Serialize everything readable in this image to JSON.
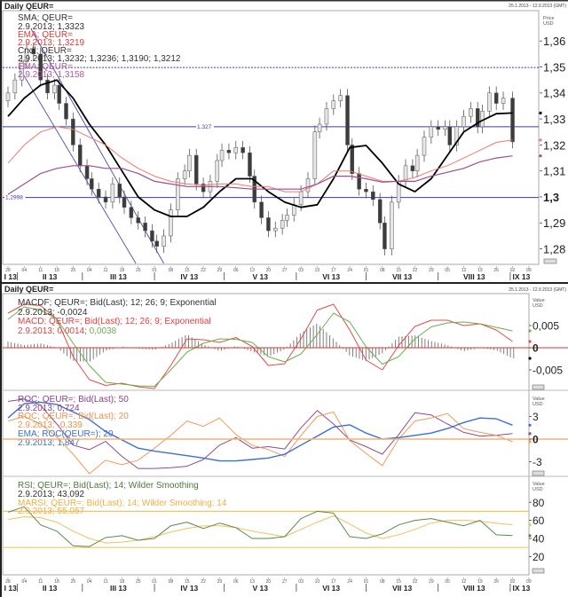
{
  "header": {
    "title_top": "Daily QEUR=",
    "title_bottom": "Daily QEUR=",
    "date_range_top": "25.1.2013 - 12.9.2013 (GMT)",
    "date_range_bottom": "25.1.2013 - 12.9.2013 (GMT)"
  },
  "legend": {
    "price": [
      {
        "name": "SMA; QEUR=",
        "value": "2.9.2013; 1,3323"
      },
      {
        "name": "EMA; QEUR=",
        "value": "2.9.2013; 1,3219"
      },
      {
        "name": "Cndl; QEUR=",
        "value": "2.9.2013; 1,3232; 1,3236; 1,3190; 1,3212"
      },
      {
        "name": "EMA; QEUR=",
        "value": "2.9.2013; 1,3158"
      }
    ],
    "macd": {
      "macdf_name": "MACDF; QEUR=; Bid(Last);  12; 26; 9; Exponential",
      "macdf_value": "2.9.2013; -0,0024",
      "macd_name": "MACD; QEUR=; Bid(Last);  12; 26; 9; Exponential",
      "macd_value": "2.9.2013; 0,0014; ",
      "signal_value": "0,0038"
    },
    "roc": {
      "roc50_name": "ROC; QEUR=; Bid(Last);  50",
      "roc50_value": "2.9.2013; 0,724",
      "roc20_name": "ROC; QEUR=; Bid(Last);  20",
      "roc20_value": "2.9.2013; -0,339",
      "ema_name": "EMA; ROC(QEUR=);  20",
      "ema_value": "2.9.2013; 1,847"
    },
    "rsi": {
      "rsi_name": "RSI; QEUR=; Bid(Last);  14; Wilder Smoothing",
      "rsi_value": "2.9.2013; 43,092",
      "marsi_name": "MARSI; QEUR=; Bid(Last);  14; Wilder Smoothing; 14",
      "marsi_value": "2.9.2013; 55,057"
    }
  },
  "axes": {
    "price_unit": [
      "Price",
      "USD"
    ],
    "value_unit": [
      "Value",
      "USD"
    ],
    "week_ticks": [
      {
        "date": "2013-01-28",
        "label": "28"
      },
      {
        "date": "2013-02-04",
        "label": "04"
      },
      {
        "date": "2013-02-11",
        "label": "11"
      },
      {
        "date": "2013-02-18",
        "label": "18"
      },
      {
        "date": "2013-02-25",
        "label": "25"
      },
      {
        "date": "2013-03-04",
        "label": "04"
      },
      {
        "date": "2013-03-11",
        "label": "11"
      },
      {
        "date": "2013-03-18",
        "label": "18"
      },
      {
        "date": "2013-03-25",
        "label": "25"
      },
      {
        "date": "2013-04-01",
        "label": "01"
      },
      {
        "date": "2013-04-08",
        "label": "08"
      },
      {
        "date": "2013-04-15",
        "label": "15"
      },
      {
        "date": "2013-04-22",
        "label": "22"
      },
      {
        "date": "2013-04-29",
        "label": "29"
      },
      {
        "date": "2013-05-06",
        "label": "06"
      },
      {
        "date": "2013-05-13",
        "label": "13"
      },
      {
        "date": "2013-05-20",
        "label": "20"
      },
      {
        "date": "2013-05-27",
        "label": "27"
      },
      {
        "date": "2013-06-03",
        "label": "03"
      },
      {
        "date": "2013-06-10",
        "label": "10"
      },
      {
        "date": "2013-06-17",
        "label": "17"
      },
      {
        "date": "2013-06-24",
        "label": "24"
      },
      {
        "date": "2013-07-01",
        "label": "01"
      },
      {
        "date": "2013-07-08",
        "label": "08"
      },
      {
        "date": "2013-07-15",
        "label": "15"
      },
      {
        "date": "2013-07-22",
        "label": "22"
      },
      {
        "date": "2013-07-29",
        "label": "29"
      },
      {
        "date": "2013-08-05",
        "label": "05"
      },
      {
        "date": "2013-08-12",
        "label": "12"
      },
      {
        "date": "2013-08-19",
        "label": "19"
      },
      {
        "date": "2013-08-26",
        "label": "26"
      },
      {
        "date": "2013-09-02",
        "label": "02"
      },
      {
        "date": "2013-09-09",
        "label": "09"
      }
    ],
    "months": [
      {
        "label": "I 13",
        "start": "2013-01-25",
        "end": "2013-02-01"
      },
      {
        "label": "II 13",
        "start": "2013-02-01",
        "end": "2013-03-01"
      },
      {
        "label": "III 13",
        "start": "2013-03-01",
        "end": "2013-04-01"
      },
      {
        "label": "IV 13",
        "start": "2013-04-01",
        "end": "2013-05-01"
      },
      {
        "label": "V 13",
        "start": "2013-05-01",
        "end": "2013-06-01"
      },
      {
        "label": "VI 13",
        "start": "2013-06-01",
        "end": "2013-07-01"
      },
      {
        "label": "VII 13",
        "start": "2013-07-01",
        "end": "2013-08-01"
      },
      {
        "label": "VIII 13",
        "start": "2013-08-01",
        "end": "2013-09-01"
      },
      {
        "label": "IX 13",
        "start": "2013-09-01",
        "end": "2013-09-12"
      }
    ]
  },
  "chart_data": [
    {
      "type": "candlestick",
      "panel": "price",
      "ylim": [
        1.275,
        1.372
      ],
      "yticks": [
        {
          "value": 1.36,
          "label": "1,36"
        },
        {
          "value": 1.35,
          "label": "1,35"
        },
        {
          "value": 1.34,
          "label": "1,34"
        },
        {
          "value": 1.33,
          "label": "1,33"
        },
        {
          "value": 1.32,
          "label": "1,32"
        },
        {
          "value": 1.31,
          "label": "1,31"
        },
        {
          "value": 1.3,
          "label": "1,3",
          "bold": true
        },
        {
          "value": 1.29,
          "label": "1,29"
        },
        {
          "value": 1.28,
          "label": "1,28"
        }
      ],
      "candles": {
        "dates": [
          "2013-01-28",
          "2013-01-31",
          "2013-02-03",
          "2013-02-05",
          "2013-02-08",
          "2013-02-11",
          "2013-02-14",
          "2013-02-17",
          "2013-02-19",
          "2013-02-22",
          "2013-02-25",
          "2013-02-28",
          "2013-03-03",
          "2013-03-05",
          "2013-03-08",
          "2013-03-11",
          "2013-03-14",
          "2013-03-17",
          "2013-03-19",
          "2013-03-22",
          "2013-03-25",
          "2013-03-28",
          "2013-03-31",
          "2013-04-02",
          "2013-04-05",
          "2013-04-08",
          "2013-04-11",
          "2013-04-14",
          "2013-04-16",
          "2013-04-19",
          "2013-04-22",
          "2013-04-25",
          "2013-04-28",
          "2013-04-30",
          "2013-05-03",
          "2013-05-06",
          "2013-05-09",
          "2013-05-12",
          "2013-05-14",
          "2013-05-17",
          "2013-05-20",
          "2013-05-23",
          "2013-05-26",
          "2013-05-28",
          "2013-05-31",
          "2013-06-03",
          "2013-06-06",
          "2013-06-09",
          "2013-06-11",
          "2013-06-14",
          "2013-06-17",
          "2013-06-20",
          "2013-06-23",
          "2013-06-25",
          "2013-06-28",
          "2013-07-01",
          "2013-07-04",
          "2013-07-07",
          "2013-07-09",
          "2013-07-12",
          "2013-07-15",
          "2013-07-18",
          "2013-07-21",
          "2013-07-23",
          "2013-07-26",
          "2013-07-29",
          "2013-08-01",
          "2013-08-04",
          "2013-08-06",
          "2013-08-09",
          "2013-08-12",
          "2013-08-15",
          "2013-08-18",
          "2013-08-20",
          "2013-08-23",
          "2013-08-26",
          "2013-08-29",
          "2013-09-02"
        ],
        "close": [
          1.34,
          1.345,
          1.352,
          1.357,
          1.355,
          1.345,
          1.34,
          1.343,
          1.336,
          1.33,
          1.32,
          1.312,
          1.307,
          1.303,
          1.3,
          1.298,
          1.305,
          1.3,
          1.296,
          1.292,
          1.29,
          1.287,
          1.283,
          1.281,
          1.285,
          1.295,
          1.307,
          1.31,
          1.316,
          1.305,
          1.302,
          1.306,
          1.314,
          1.318,
          1.317,
          1.319,
          1.317,
          1.308,
          1.298,
          1.292,
          1.287,
          1.288,
          1.291,
          1.293,
          1.297,
          1.302,
          1.307,
          1.325,
          1.328,
          1.334,
          1.337,
          1.339,
          1.32,
          1.309,
          1.303,
          1.302,
          1.299,
          1.29,
          1.28,
          1.298,
          1.306,
          1.312,
          1.31,
          1.316,
          1.323,
          1.327,
          1.326,
          1.327,
          1.32,
          1.327,
          1.331,
          1.334,
          1.327,
          1.333,
          1.34,
          1.336,
          1.338,
          1.3212
        ],
        "last_ohlc": [
          1.3232,
          1.3236,
          1.319,
          1.3212
        ]
      },
      "weekly_dates": [
        "2013-01-28",
        "2013-02-04",
        "2013-02-11",
        "2013-02-18",
        "2013-02-25",
        "2013-03-04",
        "2013-03-11",
        "2013-03-18",
        "2013-03-25",
        "2013-04-01",
        "2013-04-08",
        "2013-04-15",
        "2013-04-22",
        "2013-04-29",
        "2013-05-06",
        "2013-05-13",
        "2013-05-20",
        "2013-05-27",
        "2013-06-03",
        "2013-06-10",
        "2013-06-17",
        "2013-06-24",
        "2013-07-01",
        "2013-07-08",
        "2013-07-15",
        "2013-07-22",
        "2013-07-29",
        "2013-08-05",
        "2013-08-12",
        "2013-08-19",
        "2013-08-26",
        "2013-09-02"
      ],
      "series": [
        {
          "name": "SMA; QEUR=",
          "color": "#000000",
          "values": [
            1.331,
            1.338,
            1.343,
            1.345,
            1.338,
            1.328,
            1.32,
            1.31,
            1.3,
            1.295,
            1.2925,
            1.2925,
            1.296,
            1.302,
            1.307,
            1.307,
            1.302,
            1.298,
            1.296,
            1.297,
            1.307,
            1.319,
            1.3198,
            1.313,
            1.305,
            1.302,
            1.307,
            1.316,
            1.325,
            1.329,
            1.332,
            1.3323
          ]
        },
        {
          "name": "EMA; QEUR=",
          "color": "#f07a6a",
          "values": [
            1.313,
            1.32,
            1.325,
            1.327,
            1.326,
            1.323,
            1.32,
            1.315,
            1.311,
            1.308,
            1.306,
            1.305,
            1.3045,
            1.305,
            1.305,
            1.304,
            1.304,
            1.302,
            1.302,
            1.305,
            1.31,
            1.31,
            1.308,
            1.306,
            1.306,
            1.3075,
            1.31,
            1.312,
            1.315,
            1.318,
            1.321,
            1.3219
          ]
        },
        {
          "name": "EMA; QEUR=",
          "color": "#9b4f8f",
          "values": [
            1.301,
            1.305,
            1.309,
            1.311,
            1.312,
            1.312,
            1.311,
            1.311,
            1.309,
            1.306,
            1.305,
            1.304,
            1.304,
            1.304,
            1.3035,
            1.303,
            1.303,
            1.303,
            1.303,
            1.305,
            1.308,
            1.308,
            1.307,
            1.3057,
            1.306,
            1.306,
            1.308,
            1.3095,
            1.311,
            1.3135,
            1.315,
            1.3158
          ]
        }
      ],
      "hlines": [
        {
          "value": 1.3498,
          "style": "dotted",
          "label": ""
        },
        {
          "value": 1.327,
          "style": "solid",
          "label": "1.327"
        },
        {
          "value": 1.2998,
          "style": "solid",
          "label": "1,2998"
        }
      ],
      "trendlines": [
        {
          "from": [
            "2013-02-02",
            1.3495
          ],
          "to": [
            "2013-03-24",
            1.2744
          ]
        },
        {
          "from": [
            "2013-02-07",
            1.3645
          ],
          "to": [
            "2013-04-05",
            1.2744
          ]
        }
      ],
      "colors": {
        "up_body": "#e6e6e6",
        "down_body": "#3c3c3c",
        "wick": "#555555",
        "hline": "#3a3aa8",
        "trend": "#4a4ab8"
      }
    },
    {
      "type": "line+bar",
      "panel": "macd",
      "ylim": [
        -0.0095,
        0.012
      ],
      "yticks": [
        {
          "value": 0.005,
          "label": "0,005"
        },
        {
          "value": 0,
          "label": "0",
          "bold": true
        },
        {
          "value": -0.005,
          "label": "-0,005"
        }
      ],
      "series": [
        {
          "name": "MACD",
          "color": "#e84a4a",
          "values": [
            0.0078,
            0.0098,
            0.0095,
            0.0065,
            -0.002,
            -0.0072,
            -0.0085,
            -0.008,
            -0.0088,
            -0.0092,
            -0.004,
            0.002,
            0.0018,
            0.0012,
            0.0023,
            0.0003,
            -0.004,
            -0.0036,
            0.002,
            0.0085,
            0.0098,
            0.004,
            -0.0028,
            -0.005,
            0.0005,
            0.0048,
            0.0062,
            0.0062,
            0.005,
            0.0054,
            0.004,
            0.0014
          ]
        },
        {
          "name": "Signal",
          "color": "#6ab04c",
          "values": [
            0.0064,
            0.0092,
            0.0085,
            0.0065,
            0.001,
            -0.004,
            -0.0078,
            -0.0082,
            -0.0086,
            -0.0087,
            -0.005,
            -0.001,
            0.001,
            0.002,
            0.0019,
            0.0012,
            -0.002,
            -0.0032,
            -0.0014,
            0.003,
            0.0078,
            0.0058,
            0.0002,
            -0.0037,
            -0.002,
            0.002,
            0.0047,
            0.0056,
            0.0058,
            0.0054,
            0.0046,
            0.0038
          ]
        }
      ],
      "histogram_color": "#707070",
      "zero_line_color": "#e03030"
    },
    {
      "type": "line",
      "panel": "roc",
      "ylim": [
        -4.9,
        5.5
      ],
      "yticks": [
        {
          "value": 3,
          "label": "3"
        },
        {
          "value": 0,
          "label": "0",
          "bold": true
        },
        {
          "value": -3,
          "label": "-3"
        }
      ],
      "series": [
        {
          "name": "ROC 50",
          "color": "#8e4c8e",
          "values": [
            5.0,
            5.3,
            4.5,
            2.0,
            -0.8,
            -1.4,
            -0.3,
            -2.3,
            -3.9,
            -3.9,
            -3.8,
            -3.6,
            -2.7,
            -0.8,
            0.2,
            -1.2,
            -1.0,
            -1.3,
            1.5,
            3.8,
            2.0,
            -0.1,
            -1.0,
            -2.0,
            0.6,
            3.5,
            3.2,
            2.0,
            0.9,
            0.4,
            0.5,
            0.724
          ]
        },
        {
          "name": "ROC 20",
          "color": "#f29a5a",
          "values": [
            2.4,
            3.0,
            2.0,
            0.3,
            -2.0,
            -4.6,
            -2.8,
            -3.4,
            -2.8,
            -1.2,
            0.5,
            2.4,
            1.7,
            2.8,
            0.6,
            -0.8,
            -1.4,
            -2.3,
            0.5,
            3.0,
            3.6,
            -0.2,
            -1.9,
            -3.5,
            0.0,
            2.4,
            2.8,
            3.4,
            1.4,
            0.9,
            0.5,
            -0.339
          ]
        },
        {
          "name": "EMA ROC 20",
          "color": "#3a6fd8",
          "values": [
            2.8,
            4.7,
            4.9,
            4.6,
            3.6,
            2.6,
            1.0,
            -0.1,
            -1.2,
            -1.6,
            -1.9,
            -2.2,
            -2.5,
            -2.9,
            -2.9,
            -2.7,
            -2.5,
            -2.0,
            -0.8,
            0.4,
            1.6,
            1.9,
            0.8,
            0.0,
            0.2,
            0.5,
            0.8,
            1.4,
            2.2,
            2.8,
            2.7,
            1.847
          ]
        }
      ],
      "zero_line_color": "#f5b27a"
    },
    {
      "type": "line",
      "panel": "rsi",
      "ylim": [
        10,
        100
      ],
      "yticks": [
        {
          "value": 80,
          "label": "80"
        },
        {
          "value": 60,
          "label": "60"
        },
        {
          "value": 40,
          "label": "40"
        },
        {
          "value": 20,
          "label": "20"
        }
      ],
      "bands": [
        70,
        30
      ],
      "band_color": "#f0c860",
      "series": [
        {
          "name": "RSI 14",
          "color": "#5a8a4a",
          "values": [
            69,
            75,
            55,
            48,
            32,
            31,
            41,
            43,
            38,
            40,
            54,
            58,
            51,
            57,
            52,
            40,
            40,
            42,
            62,
            70,
            68,
            42,
            40,
            45,
            55,
            60,
            62,
            58,
            54,
            60,
            44,
            43.092
          ]
        },
        {
          "name": "MARSI 14",
          "color": "#f0c060",
          "values": [
            61,
            64,
            63,
            58,
            48,
            40,
            35,
            36,
            38,
            42,
            47,
            51,
            54,
            54,
            52,
            48,
            45,
            42,
            50,
            58,
            65,
            56,
            46,
            40,
            44,
            50,
            57,
            60,
            60,
            59,
            57,
            55.057
          ]
        }
      ]
    }
  ]
}
